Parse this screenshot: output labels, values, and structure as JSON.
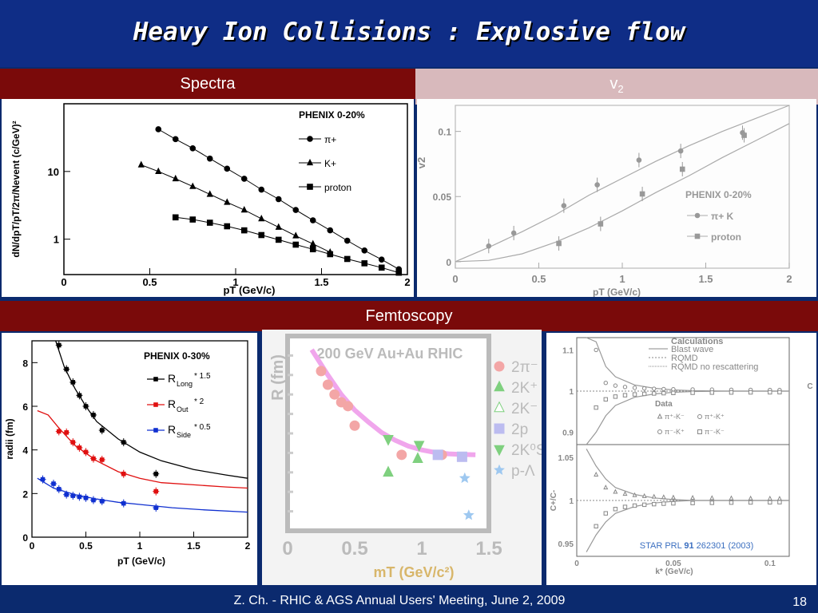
{
  "slide": {
    "title": "Heavy Ion Collisions : Explosive flow",
    "sections": {
      "spectra": "Spectra",
      "v2_base": "v",
      "v2_sub": "2",
      "femtoscopy": "Femtoscopy"
    },
    "footer": "Z. Ch. - RHIC & AGS Annual Users' Meeting, June 2, 2009",
    "page_number": "18",
    "colors": {
      "title_bg": "#0f2d86",
      "header_red": "#7a0a0a",
      "header_pink": "#d8b9bc"
    }
  },
  "chart_data": [
    {
      "id": "spectra",
      "type": "scatter",
      "title": "PHENIX 0-20%",
      "xlabel": "pT (GeV/c)",
      "ylabel": "dN/dpT/pT/2π/Nevent (c/GeV)²",
      "xlim": [
        0,
        2
      ],
      "ylog": true,
      "ylim": [
        0.3,
        100
      ],
      "xticks": [
        "0",
        "0.5",
        "1",
        "1.5",
        "2"
      ],
      "yticks": [
        {
          "v": 1,
          "label": "1"
        },
        {
          "v": 10,
          "label": "10"
        }
      ],
      "legend": [
        "π+",
        "K+",
        "proton"
      ],
      "series": [
        {
          "name": "π+",
          "marker": "circle",
          "x": [
            0.55,
            0.65,
            0.75,
            0.85,
            0.95,
            1.05,
            1.15,
            1.25,
            1.35,
            1.45,
            1.55,
            1.65,
            1.75,
            1.85,
            1.95
          ],
          "y": [
            42,
            30,
            22,
            15.5,
            11,
            7.8,
            5.4,
            3.9,
            2.7,
            1.9,
            1.35,
            0.95,
            0.68,
            0.5,
            0.36
          ]
        },
        {
          "name": "K+",
          "marker": "triangle",
          "x": [
            0.45,
            0.55,
            0.65,
            0.75,
            0.85,
            0.95,
            1.05,
            1.15,
            1.25,
            1.35,
            1.45,
            1.55
          ],
          "y": [
            12.5,
            10,
            7.8,
            6,
            4.6,
            3.5,
            2.7,
            2,
            1.5,
            1.12,
            0.85,
            0.64
          ]
        },
        {
          "name": "proton",
          "marker": "square",
          "x": [
            0.65,
            0.75,
            0.85,
            0.95,
            1.05,
            1.15,
            1.25,
            1.35,
            1.45,
            1.55,
            1.65,
            1.75,
            1.85,
            1.95
          ],
          "y": [
            2.1,
            1.95,
            1.75,
            1.55,
            1.35,
            1.15,
            0.98,
            0.83,
            0.71,
            0.6,
            0.51,
            0.44,
            0.38,
            0.32
          ]
        }
      ]
    },
    {
      "id": "v2",
      "type": "scatter",
      "title": "PHENIX 0-20%",
      "xlabel": "pT (GeV/c)",
      "ylabel": "v2",
      "xlim": [
        0,
        2
      ],
      "ylim": [
        -0.005,
        0.12
      ],
      "xticks": [
        "0",
        "0.5",
        "1",
        "1.5",
        "2"
      ],
      "yticks": [
        {
          "v": 0,
          "label": "0"
        },
        {
          "v": 0.05,
          "label": "0.05"
        },
        {
          "v": 0.1,
          "label": "0.1"
        }
      ],
      "legend": [
        "π+ K",
        "proton"
      ],
      "series": [
        {
          "name": "π+ K",
          "marker": "circle",
          "x": [
            0.2,
            0.35,
            0.65,
            0.85,
            1.1,
            1.35,
            1.72
          ],
          "y": [
            0.012,
            0.022,
            0.043,
            0.059,
            0.078,
            0.085,
            0.099
          ]
        },
        {
          "name": "proton",
          "marker": "square",
          "x": [
            0.62,
            0.87,
            1.12,
            1.36,
            1.73
          ],
          "y": [
            0.014,
            0.029,
            0.052,
            0.071,
            0.097
          ]
        }
      ],
      "curves": [
        {
          "x": [
            0,
            0.2,
            0.4,
            0.6,
            0.8,
            1.0,
            1.2,
            1.4,
            1.6,
            1.8,
            2.0
          ],
          "y": [
            0,
            0.011,
            0.023,
            0.036,
            0.051,
            0.064,
            0.077,
            0.089,
            0.1,
            0.11,
            0.12
          ]
        },
        {
          "x": [
            0,
            0.2,
            0.4,
            0.6,
            0.8,
            1.0,
            1.2,
            1.4,
            1.6,
            1.8,
            2.0
          ],
          "y": [
            0,
            0.001,
            0.006,
            0.015,
            0.026,
            0.039,
            0.053,
            0.066,
            0.08,
            0.093,
            0.106
          ]
        }
      ]
    },
    {
      "id": "radii",
      "type": "scatter",
      "title": "PHENIX 0-30%",
      "xlabel": "pT (GeV/c)",
      "ylabel": "radii (fm)",
      "xlim": [
        0,
        2
      ],
      "ylim": [
        0,
        9
      ],
      "xticks": [
        "0",
        "0.5",
        "1",
        "1.5",
        "2"
      ],
      "yticks": [
        {
          "v": 0,
          "label": "0"
        },
        {
          "v": 2,
          "label": "2"
        },
        {
          "v": 4,
          "label": "4"
        },
        {
          "v": 6,
          "label": "6"
        },
        {
          "v": 8,
          "label": "8"
        }
      ],
      "legend": [
        {
          "base": "R",
          "sub": "Long",
          "factor": "* 1.5"
        },
        {
          "base": "R",
          "sub": "Out",
          "factor": "* 2"
        },
        {
          "base": "R",
          "sub": "Side",
          "factor": "* 0.5"
        }
      ],
      "series": [
        {
          "name": "RLong",
          "color": "#000000",
          "x": [
            0.25,
            0.32,
            0.38,
            0.44,
            0.5,
            0.57,
            0.65,
            0.85,
            1.15
          ],
          "y": [
            8.8,
            7.7,
            7.1,
            6.5,
            6.0,
            5.6,
            4.9,
            4.35,
            2.9
          ]
        },
        {
          "name": "ROut",
          "color": "#e01010",
          "x": [
            0.25,
            0.32,
            0.38,
            0.44,
            0.5,
            0.57,
            0.65,
            0.85,
            1.15
          ],
          "y": [
            4.85,
            4.8,
            4.35,
            4.1,
            3.9,
            3.6,
            3.55,
            2.9,
            2.1
          ]
        },
        {
          "name": "RSide",
          "color": "#1030d0",
          "x": [
            0.1,
            0.2,
            0.25,
            0.32,
            0.38,
            0.44,
            0.5,
            0.57,
            0.65,
            0.85,
            1.15
          ],
          "y": [
            2.65,
            2.45,
            2.2,
            1.95,
            1.9,
            1.85,
            1.8,
            1.7,
            1.65,
            1.55,
            1.35
          ]
        }
      ],
      "curves": [
        {
          "color": "#000000",
          "x": [
            0.22,
            0.3,
            0.4,
            0.5,
            0.6,
            0.8,
            1.0,
            1.2,
            1.5,
            1.8,
            2.0
          ],
          "y": [
            9.0,
            7.8,
            6.8,
            6.0,
            5.3,
            4.5,
            3.9,
            3.5,
            3.1,
            2.85,
            2.7
          ]
        },
        {
          "color": "#e01010",
          "x": [
            0.05,
            0.15,
            0.25,
            0.4,
            0.6,
            0.8,
            1.0,
            1.2,
            1.5,
            1.8,
            2.0
          ],
          "y": [
            5.8,
            5.6,
            5.0,
            4.2,
            3.5,
            3.0,
            2.7,
            2.5,
            2.4,
            2.3,
            2.25
          ]
        },
        {
          "color": "#1030d0",
          "x": [
            0.05,
            0.2,
            0.4,
            0.6,
            0.8,
            1.0,
            1.3,
            1.6,
            2.0
          ],
          "y": [
            2.7,
            2.25,
            1.95,
            1.75,
            1.6,
            1.5,
            1.35,
            1.25,
            1.15
          ]
        }
      ]
    },
    {
      "id": "mt_scaling",
      "type": "scatter",
      "title": "200 GeV Au+Au RHIC",
      "xlabel": "mT (GeV/c²)",
      "ylabel": "R (fm)",
      "xlim": [
        0,
        1.5
      ],
      "xticks": [
        "0",
        "0.5",
        "1",
        "1.5"
      ],
      "legend": [
        "2π⁻",
        "2K⁺",
        "2K⁻",
        "2p",
        "2K⁰S",
        "p-Λ"
      ]
    },
    {
      "id": "ratios",
      "type": "line",
      "calculations_title": "Calculations",
      "calculations": [
        "Blast wave",
        "RQMD",
        "RQMD no rescattering"
      ],
      "data_title": "Data",
      "data_legend": [
        "π⁺-K⁻",
        "π⁺-K⁺",
        "π⁻-K⁺",
        "π⁻-K⁻"
      ],
      "xlabel": "k* (GeV/c)",
      "xticks": [
        "0",
        "0.05",
        "0.1"
      ],
      "top_ylabel": "C",
      "top_yticks": [
        "1.1",
        "1",
        "0.9"
      ],
      "bottom_ylabel": "C+/C-",
      "bottom_yticks": [
        "1.05",
        "1",
        "0.95"
      ],
      "reference": {
        "pre": "STAR PRL ",
        "vol": "91",
        "post": " 262301 (2003)"
      }
    }
  ]
}
